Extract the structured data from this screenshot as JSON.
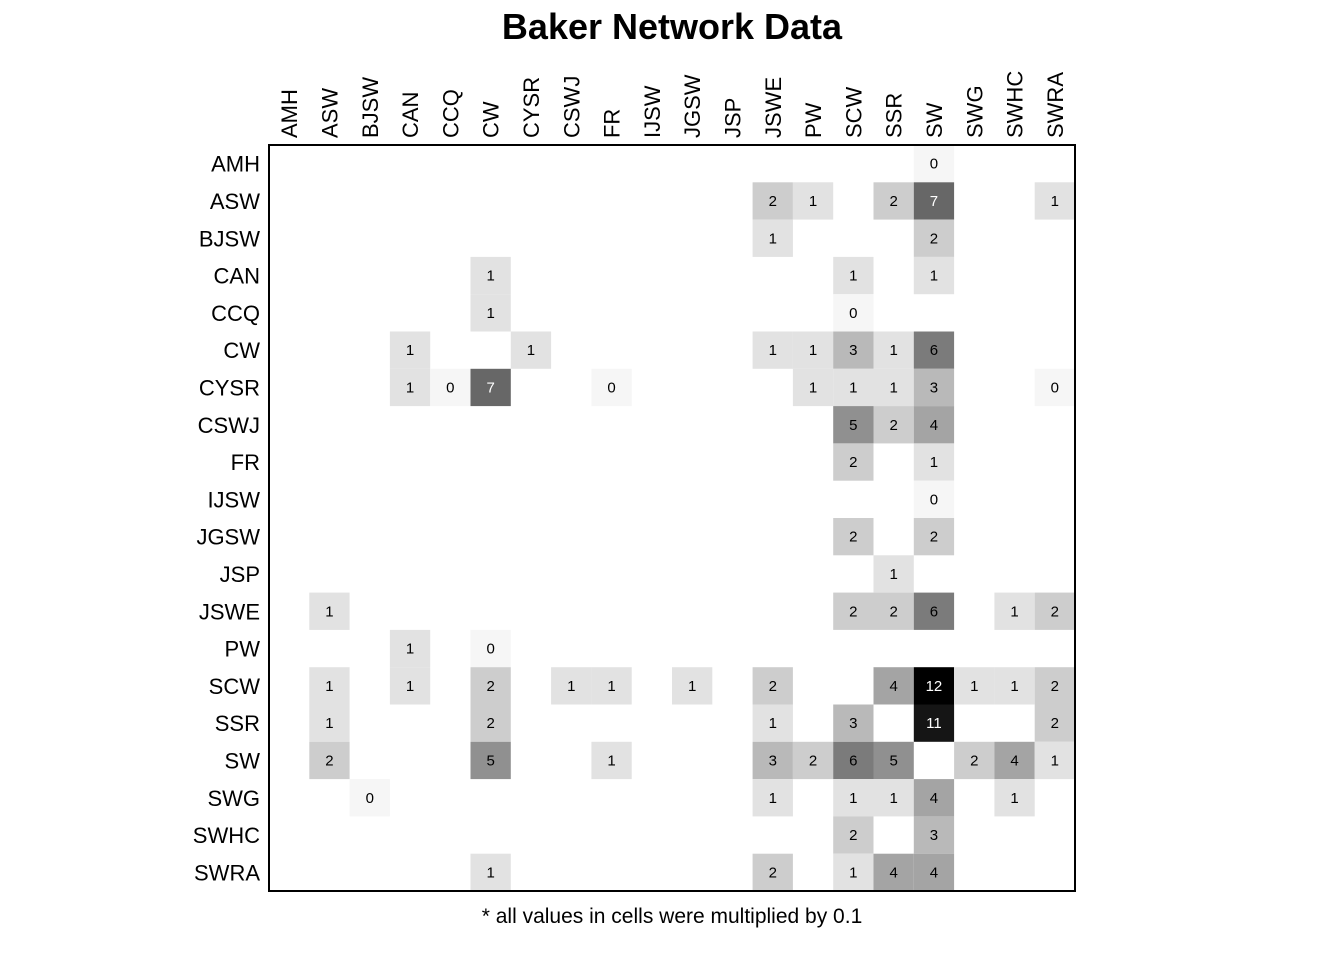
{
  "title": "Baker Network Data",
  "footnote": "* all values in cells were multiplied by 0.1",
  "chart_data": {
    "type": "heatmap",
    "title": "Baker Network Data",
    "column_labels": [
      "AMH",
      "ASW",
      "BJSW",
      "CAN",
      "CCQ",
      "CW",
      "CYSR",
      "CSWJ",
      "FR",
      "IJSW",
      "JGSW",
      "JSP",
      "JSWE",
      "PW",
      "SCW",
      "SSR",
      "SW",
      "SWG",
      "SWHC",
      "SWRA"
    ],
    "row_labels": [
      "AMH",
      "ASW",
      "BJSW",
      "CAN",
      "CCQ",
      "CW",
      "CYSR",
      "CSWJ",
      "FR",
      "IJSW",
      "JGSW",
      "JSP",
      "JSWE",
      "PW",
      "SCW",
      "SSR",
      "SW",
      "SWG",
      "SWHC",
      "SWRA"
    ],
    "cells": [
      {
        "row": "AMH",
        "col": "SW",
        "value": 0
      },
      {
        "row": "ASW",
        "col": "JSWE",
        "value": 2
      },
      {
        "row": "ASW",
        "col": "PW",
        "value": 1
      },
      {
        "row": "ASW",
        "col": "SSR",
        "value": 2
      },
      {
        "row": "ASW",
        "col": "SW",
        "value": 7
      },
      {
        "row": "ASW",
        "col": "SWRA",
        "value": 1
      },
      {
        "row": "BJSW",
        "col": "JSWE",
        "value": 1
      },
      {
        "row": "BJSW",
        "col": "SW",
        "value": 2
      },
      {
        "row": "CAN",
        "col": "CW",
        "value": 1
      },
      {
        "row": "CAN",
        "col": "SCW",
        "value": 1
      },
      {
        "row": "CAN",
        "col": "SW",
        "value": 1
      },
      {
        "row": "CCQ",
        "col": "CW",
        "value": 1
      },
      {
        "row": "CCQ",
        "col": "SCW",
        "value": 0
      },
      {
        "row": "CW",
        "col": "CAN",
        "value": 1
      },
      {
        "row": "CW",
        "col": "CYSR",
        "value": 1
      },
      {
        "row": "CW",
        "col": "JSWE",
        "value": 1
      },
      {
        "row": "CW",
        "col": "PW",
        "value": 1
      },
      {
        "row": "CW",
        "col": "SCW",
        "value": 3
      },
      {
        "row": "CW",
        "col": "SSR",
        "value": 1
      },
      {
        "row": "CW",
        "col": "SW",
        "value": 6
      },
      {
        "row": "CYSR",
        "col": "CAN",
        "value": 1
      },
      {
        "row": "CYSR",
        "col": "CCQ",
        "value": 0
      },
      {
        "row": "CYSR",
        "col": "CW",
        "value": 7
      },
      {
        "row": "CYSR",
        "col": "FR",
        "value": 0
      },
      {
        "row": "CYSR",
        "col": "PW",
        "value": 1
      },
      {
        "row": "CYSR",
        "col": "SCW",
        "value": 1
      },
      {
        "row": "CYSR",
        "col": "SSR",
        "value": 1
      },
      {
        "row": "CYSR",
        "col": "SW",
        "value": 3
      },
      {
        "row": "CYSR",
        "col": "SWRA",
        "value": 0
      },
      {
        "row": "CSWJ",
        "col": "SCW",
        "value": 5
      },
      {
        "row": "CSWJ",
        "col": "SSR",
        "value": 2
      },
      {
        "row": "CSWJ",
        "col": "SW",
        "value": 4
      },
      {
        "row": "FR",
        "col": "SCW",
        "value": 2
      },
      {
        "row": "FR",
        "col": "SW",
        "value": 1
      },
      {
        "row": "IJSW",
        "col": "SW",
        "value": 0
      },
      {
        "row": "JGSW",
        "col": "SCW",
        "value": 2
      },
      {
        "row": "JGSW",
        "col": "SW",
        "value": 2
      },
      {
        "row": "JSP",
        "col": "SSR",
        "value": 1
      },
      {
        "row": "JSWE",
        "col": "ASW",
        "value": 1
      },
      {
        "row": "JSWE",
        "col": "SCW",
        "value": 2
      },
      {
        "row": "JSWE",
        "col": "SSR",
        "value": 2
      },
      {
        "row": "JSWE",
        "col": "SW",
        "value": 6
      },
      {
        "row": "JSWE",
        "col": "SWHC",
        "value": 1
      },
      {
        "row": "JSWE",
        "col": "SWRA",
        "value": 2
      },
      {
        "row": "PW",
        "col": "CAN",
        "value": 1
      },
      {
        "row": "PW",
        "col": "CW",
        "value": 0
      },
      {
        "row": "SCW",
        "col": "ASW",
        "value": 1
      },
      {
        "row": "SCW",
        "col": "CAN",
        "value": 1
      },
      {
        "row": "SCW",
        "col": "CW",
        "value": 2
      },
      {
        "row": "SCW",
        "col": "CSWJ",
        "value": 1
      },
      {
        "row": "SCW",
        "col": "FR",
        "value": 1
      },
      {
        "row": "SCW",
        "col": "JGSW",
        "value": 1
      },
      {
        "row": "SCW",
        "col": "JSWE",
        "value": 2
      },
      {
        "row": "SCW",
        "col": "SSR",
        "value": 4
      },
      {
        "row": "SCW",
        "col": "SW",
        "value": 12
      },
      {
        "row": "SCW",
        "col": "SWG",
        "value": 1
      },
      {
        "row": "SCW",
        "col": "SWHC",
        "value": 1
      },
      {
        "row": "SCW",
        "col": "SWRA",
        "value": 2
      },
      {
        "row": "SSR",
        "col": "ASW",
        "value": 1
      },
      {
        "row": "SSR",
        "col": "CW",
        "value": 2
      },
      {
        "row": "SSR",
        "col": "JSWE",
        "value": 1
      },
      {
        "row": "SSR",
        "col": "SCW",
        "value": 3
      },
      {
        "row": "SSR",
        "col": "SW",
        "value": 11
      },
      {
        "row": "SSR",
        "col": "SWRA",
        "value": 2
      },
      {
        "row": "SW",
        "col": "ASW",
        "value": 2
      },
      {
        "row": "SW",
        "col": "CW",
        "value": 5
      },
      {
        "row": "SW",
        "col": "FR",
        "value": 1
      },
      {
        "row": "SW",
        "col": "JSWE",
        "value": 3
      },
      {
        "row": "SW",
        "col": "PW",
        "value": 2
      },
      {
        "row": "SW",
        "col": "SCW",
        "value": 6
      },
      {
        "row": "SW",
        "col": "SSR",
        "value": 5
      },
      {
        "row": "SW",
        "col": "SWG",
        "value": 2
      },
      {
        "row": "SW",
        "col": "SWHC",
        "value": 4
      },
      {
        "row": "SW",
        "col": "SWRA",
        "value": 1
      },
      {
        "row": "SWG",
        "col": "BJSW",
        "value": 0
      },
      {
        "row": "SWG",
        "col": "JSWE",
        "value": 1
      },
      {
        "row": "SWG",
        "col": "SCW",
        "value": 1
      },
      {
        "row": "SWG",
        "col": "SSR",
        "value": 1
      },
      {
        "row": "SWG",
        "col": "SW",
        "value": 4
      },
      {
        "row": "SWG",
        "col": "SWHC",
        "value": 1
      },
      {
        "row": "SWHC",
        "col": "SCW",
        "value": 2
      },
      {
        "row": "SWHC",
        "col": "SW",
        "value": 3
      },
      {
        "row": "SWRA",
        "col": "CW",
        "value": 1
      },
      {
        "row": "SWRA",
        "col": "JSWE",
        "value": 2
      },
      {
        "row": "SWRA",
        "col": "SCW",
        "value": 1
      },
      {
        "row": "SWRA",
        "col": "SSR",
        "value": 4
      },
      {
        "row": "SWRA",
        "col": "SW",
        "value": 4
      }
    ],
    "color_scale": "grayscale (light = low, black = high)",
    "grid": false,
    "legend": "none"
  }
}
